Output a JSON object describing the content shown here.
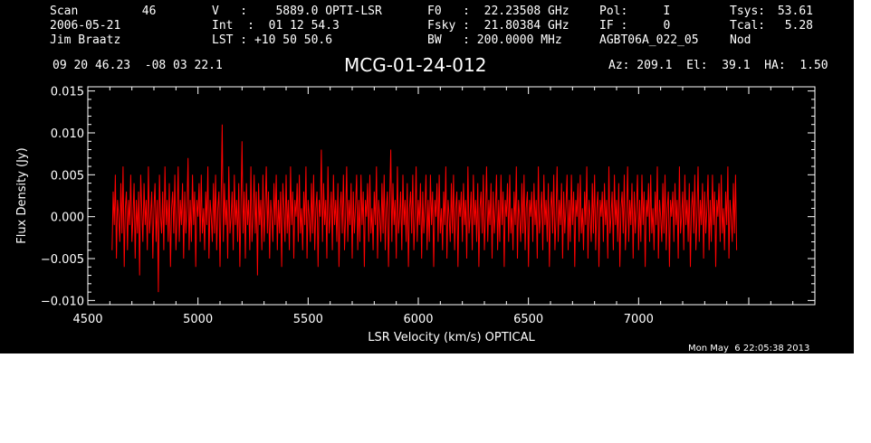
{
  "header": {
    "col1": [
      "Scan         46",
      "2006-05-21",
      "Jim Braatz"
    ],
    "col2": [
      "V   :    5889.0 OPTI-LSR",
      "Int  :  01 12 54.3",
      "LST : +10 50 50.6"
    ],
    "col3": [
      "F0   :  22.23508 GHz",
      "Fsky :  21.80384 GHz",
      "BW   : 200.0000 MHz"
    ],
    "col4": [
      "Pol:     I",
      "IF :     0",
      "AGBT06A_022_05"
    ],
    "col5": [
      "Tsys:",
      "Tcal:",
      "Nod"
    ],
    "col6": [
      "53.61",
      "5.28",
      ""
    ],
    "coords": "09 20 46.23  -08 03 22.1",
    "source": "MCG-01-24-012",
    "pointing": "Az: 209.1  El:  39.1  HA:  1.50",
    "timestamp": "Mon May  6 22:05:38 2013"
  },
  "colors": {
    "background": "#000000",
    "axes": "#ffffff",
    "trace": "#ff0000"
  },
  "chart_data": {
    "type": "line",
    "title": "MCG-01-24-012",
    "xlabel": "LSR Velocity (km/s) OPTICAL",
    "ylabel": "Flux Density (Jy)",
    "xlim": [
      4500,
      7800
    ],
    "ylim": [
      -0.0105,
      0.0155
    ],
    "xticks": [
      {
        "value": 4500,
        "label": "4500"
      },
      {
        "value": 5000,
        "label": "5000"
      },
      {
        "value": 5500,
        "label": "5500"
      },
      {
        "value": 6000,
        "label": "6000"
      },
      {
        "value": 6500,
        "label": "6500"
      },
      {
        "value": 7000,
        "label": "7000"
      }
    ],
    "yticks": [
      {
        "value": -0.01,
        "label": "−0.010"
      },
      {
        "value": -0.005,
        "label": "−0.005"
      },
      {
        "value": 0.0,
        "label": "0.000"
      },
      {
        "value": 0.005,
        "label": "0.005"
      },
      {
        "value": 0.01,
        "label": "0.010"
      },
      {
        "value": 0.015,
        "label": "0.015"
      }
    ],
    "grid": false,
    "series": [
      {
        "color": "#ff0000",
        "x_start": 4610,
        "x_step": 5,
        "values": [
          -0.004,
          0.003,
          -0.001,
          0.005,
          -0.005,
          0.002,
          0.0,
          -0.003,
          0.004,
          -0.002,
          0.006,
          -0.006,
          0.001,
          0.003,
          -0.004,
          0.002,
          -0.001,
          0.005,
          -0.003,
          0.0,
          0.004,
          -0.005,
          0.002,
          -0.002,
          0.003,
          -0.007,
          0.005,
          0.001,
          -0.003,
          0.004,
          -0.001,
          0.002,
          -0.004,
          0.006,
          -0.002,
          0.0,
          0.003,
          -0.005,
          0.001,
          0.004,
          -0.003,
          0.002,
          -0.009,
          0.005,
          0.0,
          -0.002,
          0.003,
          -0.004,
          0.006,
          -0.001,
          0.002,
          -0.003,
          0.004,
          -0.006,
          0.001,
          0.003,
          -0.002,
          0.005,
          -0.004,
          0.0,
          0.006,
          -0.003,
          0.002,
          -0.001,
          0.004,
          -0.005,
          0.003,
          -0.002,
          0.001,
          0.007,
          -0.004,
          0.002,
          -0.003,
          0.005,
          -0.001,
          0.003,
          -0.006,
          0.002,
          0.0,
          0.004,
          -0.003,
          0.005,
          -0.002,
          0.001,
          -0.004,
          0.003,
          -0.001,
          0.006,
          -0.005,
          0.002,
          0.0,
          -0.003,
          0.004,
          -0.002,
          0.005,
          -0.004,
          0.001,
          0.003,
          -0.006,
          0.002,
          0.011,
          -0.003,
          0.004,
          -0.001,
          0.002,
          -0.005,
          0.006,
          -0.002,
          0.0,
          0.003,
          -0.004,
          0.005,
          -0.001,
          0.002,
          -0.003,
          0.004,
          -0.006,
          0.001,
          0.009,
          -0.002,
          0.003,
          -0.005,
          0.004,
          -0.001,
          0.002,
          -0.004,
          0.006,
          -0.003,
          0.0,
          0.005,
          -0.002,
          0.003,
          -0.007,
          0.004,
          -0.001,
          0.002,
          -0.004,
          0.005,
          -0.003,
          0.001,
          0.006,
          -0.002,
          0.003,
          -0.005,
          0.002,
          0.0,
          -0.003,
          0.004,
          -0.001,
          0.005,
          -0.004,
          0.002,
          -0.002,
          0.003,
          -0.006,
          0.004,
          0.001,
          -0.003,
          0.005,
          -0.002,
          0.002,
          -0.004,
          0.006,
          -0.001,
          0.003,
          -0.005,
          0.002,
          0.0,
          0.004,
          -0.003,
          0.005,
          -0.002,
          0.001,
          -0.004,
          0.003,
          -0.001,
          0.006,
          -0.005,
          0.002,
          0.0,
          -0.003,
          0.004,
          -0.002,
          0.005,
          -0.004,
          0.001,
          0.003,
          -0.006,
          0.002,
          0.0,
          0.008,
          -0.003,
          0.004,
          -0.001,
          0.002,
          -0.005,
          0.006,
          -0.002,
          0.0,
          0.003,
          -0.004,
          0.005,
          -0.001,
          0.002,
          -0.003,
          0.004,
          -0.006,
          0.001,
          0.003,
          -0.002,
          0.005,
          -0.004,
          0.0,
          0.006,
          -0.003,
          0.002,
          -0.001,
          0.004,
          -0.005,
          0.003,
          -0.002,
          0.001,
          0.005,
          -0.004,
          0.002,
          -0.003,
          0.005,
          -0.001,
          0.003,
          -0.006,
          0.002,
          0.0,
          0.004,
          -0.003,
          0.005,
          -0.002,
          0.001,
          -0.004,
          0.003,
          -0.001,
          0.006,
          -0.005,
          0.002,
          0.0,
          -0.003,
          0.004,
          -0.002,
          0.005,
          -0.004,
          0.001,
          0.003,
          -0.006,
          0.002,
          0.008,
          -0.003,
          0.004,
          -0.001,
          0.002,
          -0.005,
          0.006,
          -0.002,
          0.0,
          0.003,
          -0.004,
          0.005,
          -0.001,
          0.002,
          -0.003,
          0.004,
          -0.006,
          0.001,
          0.003,
          -0.002,
          0.005,
          -0.004,
          0.0,
          0.006,
          -0.003,
          0.002,
          -0.001,
          0.004,
          -0.005,
          0.003,
          -0.002,
          0.001,
          0.005,
          -0.004,
          0.002,
          -0.003,
          0.005,
          -0.001,
          0.003,
          -0.006,
          0.002,
          0.0,
          0.004,
          -0.003,
          0.005,
          -0.002,
          0.001,
          -0.004,
          0.003,
          -0.001,
          0.006,
          -0.005,
          0.002,
          0.0,
          -0.003,
          0.004,
          -0.002,
          0.005,
          -0.004,
          0.001,
          0.003,
          -0.006,
          0.002,
          0.0,
          0.003,
          -0.003,
          0.004,
          -0.001,
          0.002,
          -0.005,
          0.006,
          -0.002,
          0.0,
          0.003,
          -0.004,
          0.005,
          -0.001,
          0.002,
          -0.003,
          0.004,
          -0.006,
          0.001,
          0.003,
          -0.002,
          0.005,
          -0.004,
          0.0,
          0.006,
          -0.003,
          0.002,
          -0.001,
          0.004,
          -0.005,
          0.003,
          -0.002,
          0.001,
          0.005,
          -0.004,
          0.002,
          -0.003,
          0.005,
          -0.001,
          0.003,
          -0.006,
          0.002,
          0.0,
          0.004,
          -0.003,
          0.005,
          -0.002,
          0.001,
          -0.004,
          0.003,
          -0.001,
          0.006,
          -0.005,
          0.002,
          0.0,
          -0.003,
          0.004,
          -0.002,
          0.005,
          -0.004,
          0.001,
          0.003,
          -0.006,
          0.002,
          0.0,
          0.003,
          -0.003,
          0.004,
          -0.001,
          0.002,
          -0.005,
          0.006,
          -0.002,
          0.0,
          0.003,
          -0.004,
          0.005,
          -0.001,
          0.002,
          -0.003,
          0.004,
          -0.006,
          0.001,
          0.003,
          -0.002,
          0.005,
          -0.004,
          0.0,
          0.006,
          -0.003,
          0.002,
          -0.001,
          0.004,
          -0.005,
          0.003,
          -0.002,
          0.001,
          0.005,
          -0.004,
          0.002,
          -0.003,
          0.005,
          -0.001,
          0.003,
          -0.006,
          0.002,
          0.0,
          0.004,
          -0.003,
          0.005,
          -0.002,
          0.001,
          -0.004,
          0.003,
          -0.001,
          0.006,
          -0.005,
          0.002,
          0.0,
          -0.003,
          0.004,
          -0.002,
          0.005,
          -0.004,
          0.001,
          0.003,
          -0.006,
          0.002,
          0.0,
          0.003,
          -0.003,
          0.004,
          -0.001,
          0.002,
          -0.005,
          0.006,
          -0.002,
          0.0,
          0.003,
          -0.004,
          0.005,
          -0.001,
          0.002,
          -0.003,
          0.004,
          -0.006,
          0.001,
          0.003,
          -0.002,
          0.005,
          -0.004,
          0.0,
          0.006,
          -0.003,
          0.002,
          -0.001,
          0.004,
          -0.005,
          0.003,
          -0.002,
          0.001,
          0.005,
          -0.004,
          0.002,
          -0.003,
          0.005,
          -0.001,
          0.003,
          -0.006,
          0.002,
          0.0,
          0.004,
          -0.003,
          0.005,
          -0.002,
          0.001,
          -0.004,
          0.003,
          -0.001,
          0.006,
          -0.005,
          0.002,
          0.0,
          -0.003,
          0.004,
          -0.002,
          0.005,
          -0.004,
          0.001,
          0.003,
          -0.006,
          0.002,
          0.0,
          0.003,
          -0.003,
          0.004,
          -0.001,
          0.002,
          -0.005,
          0.006,
          -0.002,
          0.0,
          0.003,
          -0.004,
          0.005,
          -0.001,
          0.002,
          -0.003,
          0.004,
          -0.006,
          0.001,
          0.003,
          -0.002,
          0.005,
          -0.004,
          0.0,
          0.006,
          -0.003,
          0.002,
          -0.001,
          0.004,
          -0.005,
          0.003,
          -0.002,
          0.001,
          0.005,
          -0.004,
          0.002,
          -0.003,
          0.005,
          -0.001,
          0.003,
          -0.006,
          0.002,
          0.0,
          0.004,
          -0.003,
          0.005,
          -0.002,
          0.001,
          -0.004,
          0.003,
          -0.001,
          0.006,
          -0.005,
          0.002,
          0.0,
          -0.003,
          0.004,
          -0.002,
          0.005,
          -0.004
        ]
      }
    ]
  }
}
